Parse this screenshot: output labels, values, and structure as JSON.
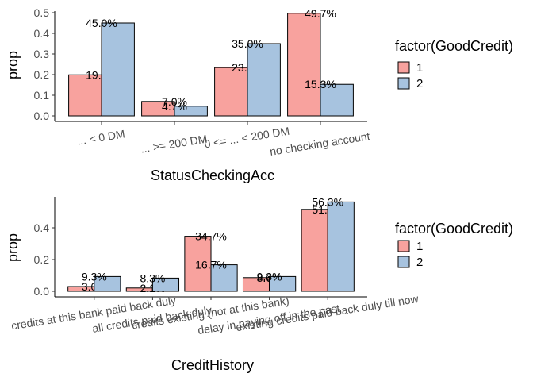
{
  "chart_data": [
    {
      "type": "bar",
      "xlabel": "StatusCheckingAcc",
      "ylabel": "prop",
      "ylim": [
        0,
        0.5
      ],
      "yticks": [
        "0.0",
        "0.1",
        "0.2",
        "0.3",
        "0.4",
        "0.5"
      ],
      "categories": [
        "... < 0 DM",
        "... >= 200 DM",
        "0 <= ... < 200 DM",
        "no checking account"
      ],
      "series": [
        {
          "name": "1",
          "color": "#f8a29e",
          "values": [
            0.199,
            0.07,
            0.234,
            0.497
          ],
          "labels": [
            "19.9%",
            "7.0%",
            "23.4%",
            "49.7%"
          ]
        },
        {
          "name": "2",
          "color": "#a7c3df",
          "values": [
            0.45,
            0.047,
            0.35,
            0.153
          ],
          "labels": [
            "45.0%",
            "4.7%",
            "35.0%",
            "15.3%"
          ]
        }
      ],
      "legend": {
        "title": "factor(GoodCredit)",
        "position": "right"
      },
      "grid": false
    },
    {
      "type": "bar",
      "xlabel": "CreditHistory",
      "ylabel": "prop",
      "ylim": [
        0,
        0.567
      ],
      "yticks": [
        "0.0",
        "0.2",
        "0.4"
      ],
      "categories": [
        "credits at this bank paid back duly",
        "all credits paid back duly",
        "credits existing (not at this bank)",
        "delay in paying off in the past",
        "existing credits paid back duly till now"
      ],
      "series": [
        {
          "name": "1",
          "color": "#f8a29e",
          "values": [
            0.03,
            0.021,
            0.347,
            0.086,
            0.516
          ],
          "labels": [
            "3.0%",
            "2.1%",
            "34.7%",
            "8.6%",
            "51.6%"
          ]
        },
        {
          "name": "2",
          "color": "#a7c3df",
          "values": [
            0.093,
            0.083,
            0.167,
            0.093,
            0.563
          ],
          "labels": [
            "9.3%",
            "8.3%",
            "16.7%",
            "9.3%",
            "56.3%"
          ]
        }
      ],
      "legend": {
        "title": "factor(GoodCredit)",
        "position": "right"
      },
      "grid": false
    }
  ]
}
